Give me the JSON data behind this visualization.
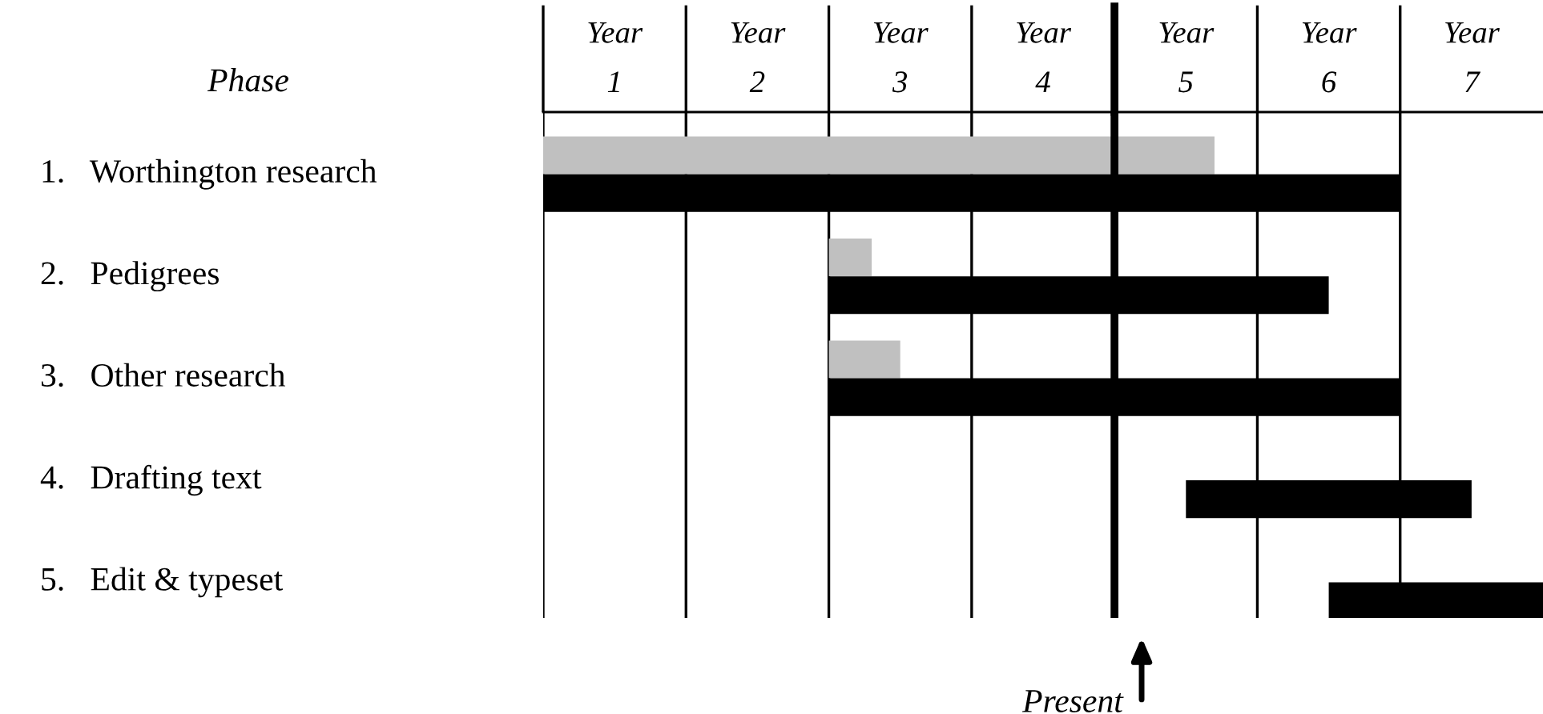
{
  "chart_data": {
    "type": "bar",
    "orientation": "horizontal",
    "ylabel": "Phase",
    "categories": [
      "1.   Worthington research",
      "2.   Pedigrees",
      "3.   Other research",
      "4.   Drafting text",
      "5.   Edit & typeset"
    ],
    "series": [
      {
        "color": "#c0c0c0",
        "base": [
          0.5,
          2.5,
          2.5,
          null,
          null
        ],
        "values": [
          4.7,
          0.3,
          0.5,
          null,
          null
        ]
      },
      {
        "color": "#000000",
        "base": [
          0.5,
          2.5,
          2.5,
          5,
          6
        ],
        "values": [
          6,
          3.5,
          4,
          2,
          1.5
        ]
      }
    ],
    "xlim": [
      0.5,
      7.5
    ],
    "xticks": [
      {
        "value": 0.5,
        "label": null
      },
      {
        "value": 1.5,
        "label": null
      },
      {
        "value": 2.5,
        "label": null
      },
      {
        "value": 3.5,
        "label": null
      },
      {
        "value": 4.5,
        "label": null
      },
      {
        "value": 5.5,
        "label": null
      },
      {
        "value": 6.5,
        "label": null
      },
      1,
      2,
      3,
      4,
      5,
      6,
      7
    ],
    "annotations": [
      "Year",
      "Year",
      "Year",
      "Year",
      "Year",
      "Year",
      "Year"
    ],
    "grid": "x",
    "ref_lines": [
      {
        "axis": "x",
        "value": 4.5,
        "label": "Present",
        "color": "#000000"
      }
    ]
  }
}
